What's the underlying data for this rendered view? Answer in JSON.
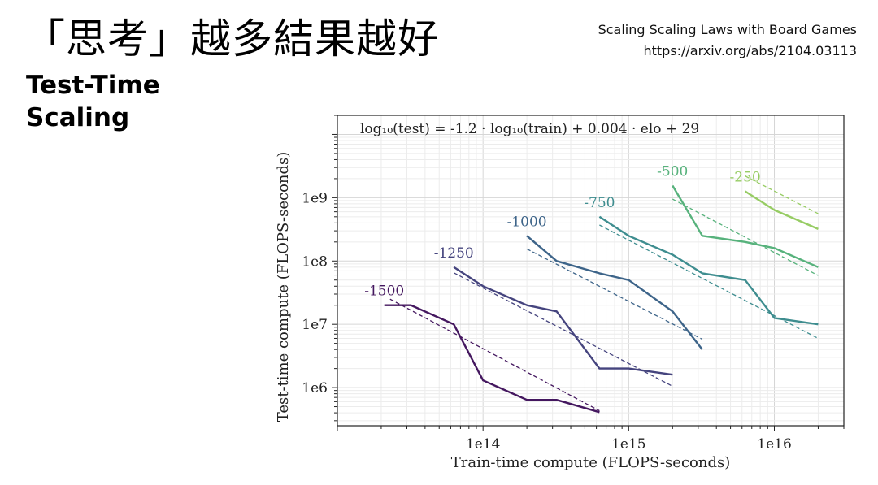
{
  "slide": {
    "title": "「思考」越多結果越好",
    "subtitle_line1": "Test-Time",
    "subtitle_line2": "Scaling",
    "ref_title": "Scaling Scaling Laws with Board Games",
    "ref_url": "https://arxiv.org/abs/2104.03113"
  },
  "chart_data": {
    "type": "line",
    "title": "",
    "annotation": "log₁₀(test) = -1.2 · log₁₀(train) + 0.004 · elo + 29",
    "xlabel": "Train-time compute (FLOPS-seconds)",
    "ylabel": "Test-time compute (FLOPS-seconds)",
    "xscale": "log",
    "yscale": "log",
    "xlim": [
      10000000000000.0,
      3e+16
    ],
    "ylim": [
      250000.0,
      20000000000.0
    ],
    "xticks": [
      {
        "value": 100000000000000.0,
        "label": "1e14"
      },
      {
        "value": 1000000000000000.0,
        "label": "1e15"
      },
      {
        "value": 1e+16,
        "label": "1e16"
      }
    ],
    "yticks": [
      {
        "value": 1000000.0,
        "label": "1e6"
      },
      {
        "value": 10000000.0,
        "label": "1e7"
      },
      {
        "value": 100000000.0,
        "label": "1e8"
      },
      {
        "value": 1000000000.0,
        "label": "1e9"
      }
    ],
    "grid": true,
    "series": [
      {
        "name": "-1500",
        "color": "#44175f",
        "points": [
          [
            21000000000000.0,
            20000000.0
          ],
          [
            32000000000000.0,
            20000000.0
          ],
          [
            63000000000000.0,
            10000000.0
          ],
          [
            100000000000000.0,
            1300000.0
          ],
          [
            200000000000000.0,
            640000.0
          ],
          [
            320000000000000.0,
            640000.0
          ],
          [
            630000000000000.0,
            410000.0
          ]
        ],
        "fit": [
          [
            23000000000000.0,
            25000000.0
          ],
          [
            630000000000000.0,
            430000.0
          ]
        ]
      },
      {
        "name": "-1250",
        "color": "#45447e",
        "points": [
          [
            63000000000000.0,
            80000000.0
          ],
          [
            100000000000000.0,
            40000000.0
          ],
          [
            200000000000000.0,
            20000000.0
          ],
          [
            320000000000000.0,
            16000000.0
          ],
          [
            630000000000000.0,
            2000000.0
          ],
          [
            1000000000000000.0,
            2000000.0
          ],
          [
            2000000000000000.0,
            1600000.0
          ]
        ],
        "fit": [
          [
            63000000000000.0,
            65000000.0
          ],
          [
            2000000000000000.0,
            1050000.0
          ]
        ]
      },
      {
        "name": "-1000",
        "color": "#3d6489",
        "points": [
          [
            200000000000000.0,
            250000000.0
          ],
          [
            320000000000000.0,
            100000000.0
          ],
          [
            630000000000000.0,
            64000000.0
          ],
          [
            1000000000000000.0,
            50000000.0
          ],
          [
            2000000000000000.0,
            16000000.0
          ],
          [
            3200000000000000.0,
            4000000.0
          ]
        ],
        "fit": [
          [
            200000000000000.0,
            155000000.0
          ],
          [
            3200000000000000.0,
            5800000.0
          ]
        ]
      },
      {
        "name": "-750",
        "color": "#3e8d8f",
        "points": [
          [
            630000000000000.0,
            500000000.0
          ],
          [
            1000000000000000.0,
            250000000.0
          ],
          [
            2000000000000000.0,
            126000000.0
          ],
          [
            3200000000000000.0,
            64000000.0
          ],
          [
            6300000000000000.0,
            50000000.0
          ],
          [
            1e+16,
            12600000.0
          ],
          [
            2e+16,
            10000000.0
          ]
        ],
        "fit": [
          [
            630000000000000.0,
            370000000.0
          ],
          [
            2e+16,
            6000000.0
          ]
        ]
      },
      {
        "name": "-500",
        "color": "#57b27c",
        "points": [
          [
            2000000000000000.0,
            1550000000.0
          ],
          [
            3200000000000000.0,
            250000000.0
          ],
          [
            6300000000000000.0,
            200000000.0
          ],
          [
            1e+16,
            160000000.0
          ],
          [
            2e+16,
            80000000.0
          ]
        ],
        "fit": [
          [
            2000000000000000.0,
            950000000.0
          ],
          [
            2e+16,
            59000000.0
          ]
        ]
      },
      {
        "name": "-250",
        "color": "#97cc64",
        "points": [
          [
            6300000000000000.0,
            1260000000.0
          ],
          [
            1e+16,
            640000000.0
          ],
          [
            2e+16,
            320000000.0
          ]
        ],
        "fit": [
          [
            6300000000000000.0,
            2200000000.0
          ],
          [
            2e+16,
            560000000.0
          ]
        ]
      }
    ]
  }
}
